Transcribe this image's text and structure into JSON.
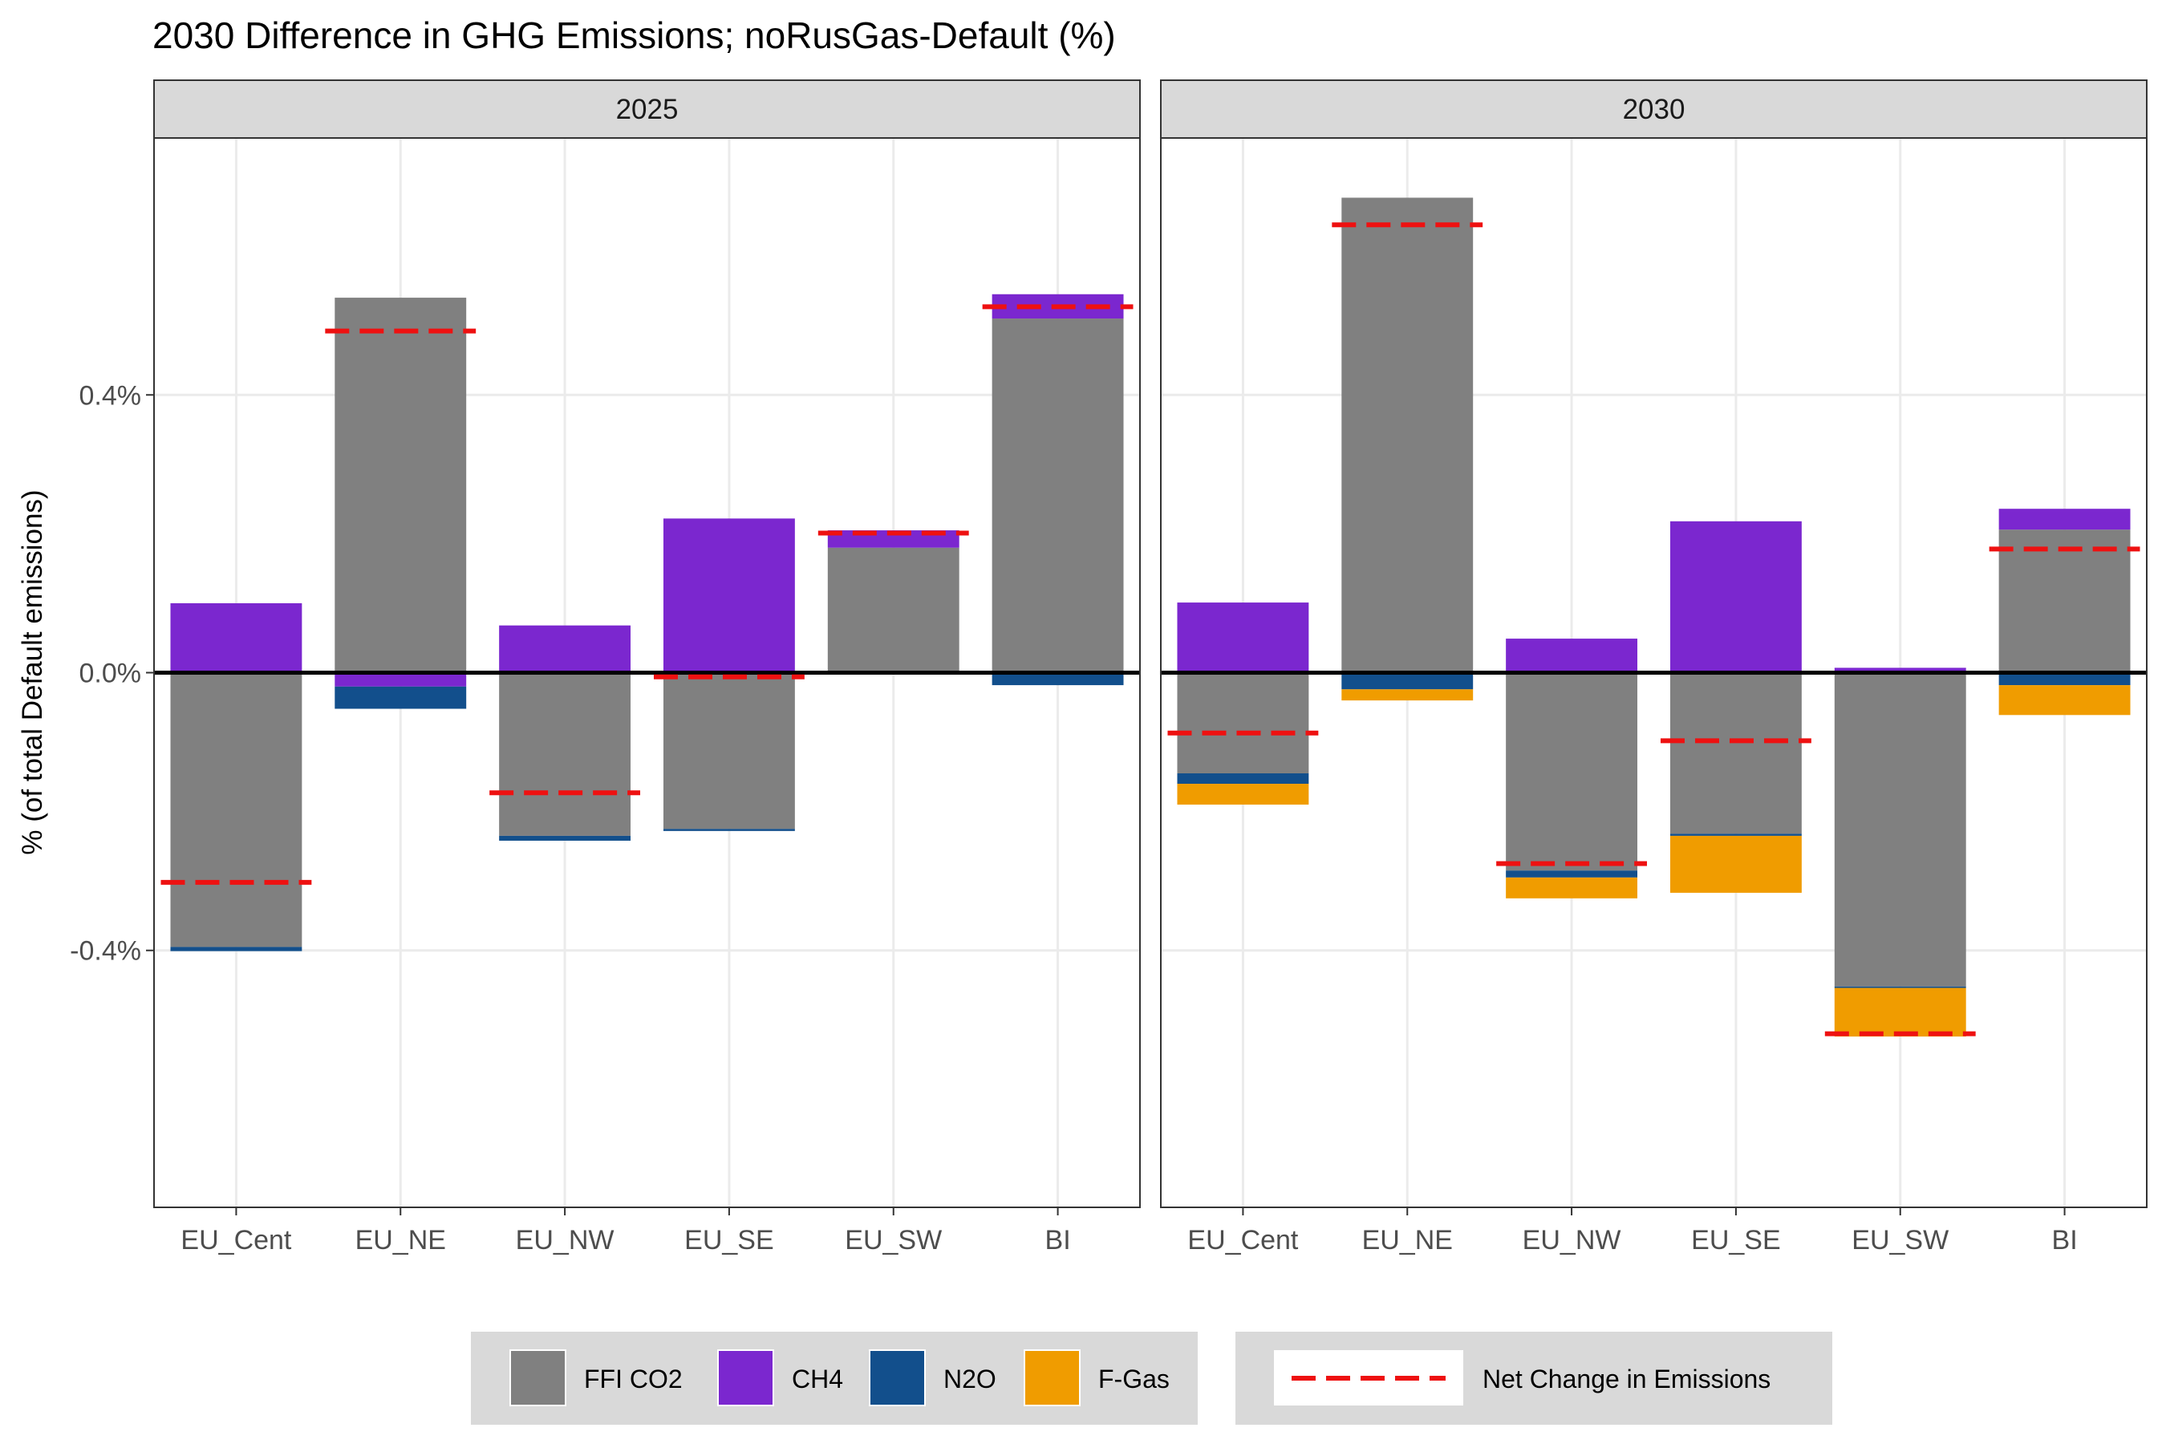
{
  "chart_data": {
    "type": "bar",
    "stacked": true,
    "title": "2030 Difference in GHG Emissions; noRusGas-Default (%)",
    "xlabel": "",
    "ylabel": "% (of total Default emissions)",
    "ylim": [
      -0.77,
      0.77
    ],
    "yticks": [
      -0.4,
      0.0,
      0.4
    ],
    "ytick_labels": [
      "-0.4%",
      "0.0%",
      "0.4%"
    ],
    "grid": true,
    "legend_position": "bottom",
    "categories": [
      "EU_Cent",
      "EU_NE",
      "EU_NW",
      "EU_SE",
      "EU_SW",
      "BI"
    ],
    "series": [
      {
        "name": "FFI CO2",
        "color": "#808080"
      },
      {
        "name": "CH4",
        "color": "#7B27CF"
      },
      {
        "name": "N2O",
        "color": "#124F8C"
      },
      {
        "name": "F-Gas",
        "color": "#F09C00"
      }
    ],
    "net_series": {
      "name": "Net Change in Emissions",
      "color": "#EE1111"
    },
    "panels": [
      {
        "label": "2025",
        "values": {
          "FFI CO2": [
            -0.395,
            0.54,
            -0.235,
            -0.225,
            0.18,
            0.51
          ],
          "CH4": [
            0.1,
            -0.02,
            0.068,
            0.222,
            0.025,
            0.035
          ],
          "N2O": [
            -0.006,
            -0.032,
            -0.007,
            -0.003,
            0.0,
            -0.018
          ],
          "F-Gas": [
            0.0,
            0.0,
            0.0,
            0.0,
            0.0,
            0.0
          ]
        },
        "net": [
          -0.302,
          0.492,
          -0.173,
          -0.006,
          0.201,
          0.527
        ]
      },
      {
        "label": "2030",
        "values": {
          "FFI CO2": [
            -0.145,
            0.684,
            -0.285,
            -0.232,
            -0.452,
            0.206
          ],
          "CH4": [
            0.101,
            0.0,
            0.049,
            0.218,
            0.007,
            0.03
          ],
          "N2O": [
            -0.015,
            -0.024,
            -0.01,
            -0.003,
            -0.002,
            -0.018
          ],
          "F-Gas": [
            -0.03,
            -0.016,
            -0.03,
            -0.082,
            -0.07,
            -0.043
          ]
        },
        "net": [
          -0.087,
          0.645,
          -0.275,
          -0.098,
          -0.52,
          0.178
        ]
      }
    ]
  }
}
